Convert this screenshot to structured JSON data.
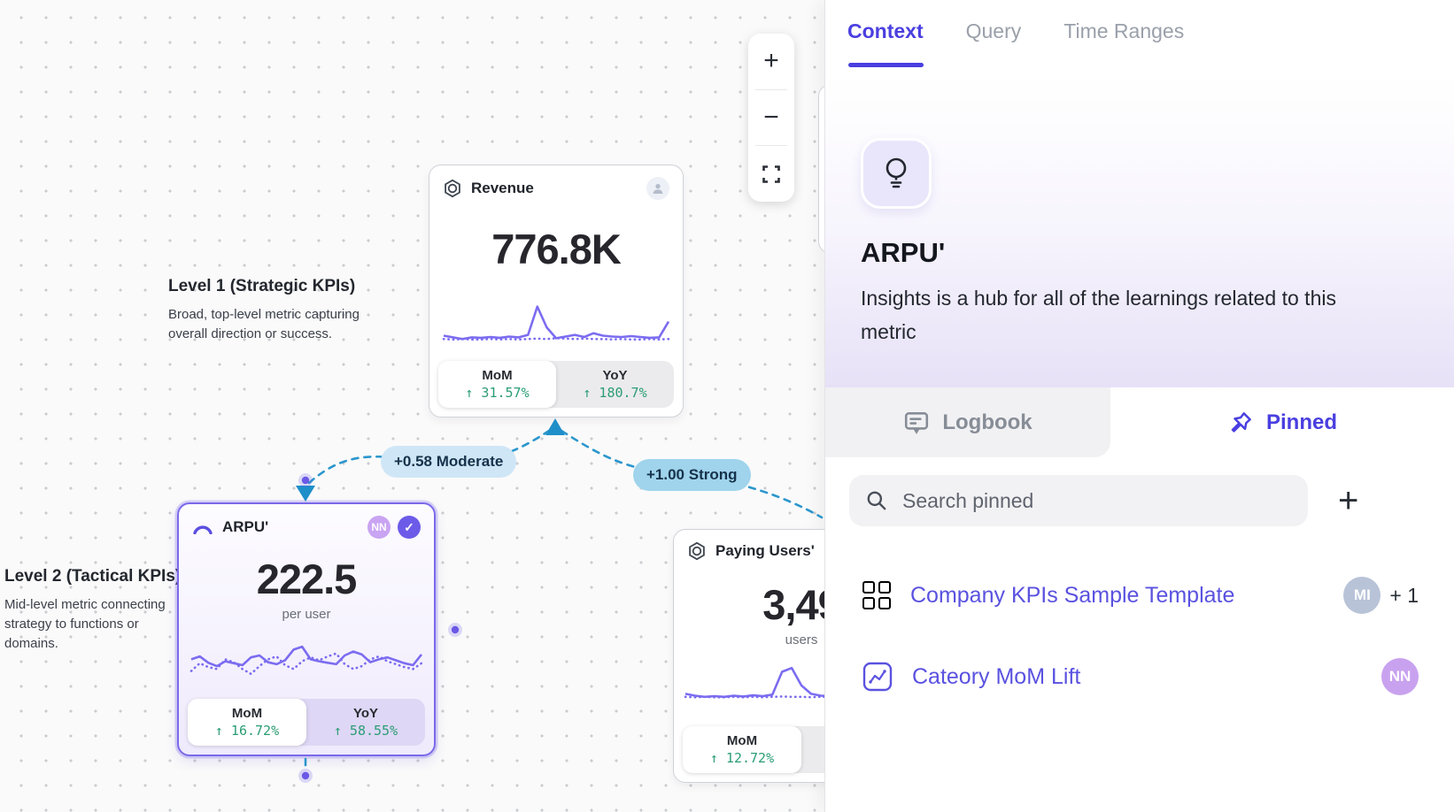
{
  "colors": {
    "accent": "#4a3fe0",
    "sparkline": "#7b6cf0",
    "positive_green": "#2a9d74",
    "edge_blue": "#2b96cd",
    "selected_card_border": "#7a69ea",
    "moderate_pill": "#cfe6f7",
    "strong_pill": "#9fd4ec"
  },
  "canvas": {
    "levels": [
      {
        "title": "Level 1 (Strategic KPIs)",
        "description": "Broad, top-level metric capturing overall direction or success."
      },
      {
        "title": "Level 2 (Tactical KPIs)",
        "description": "Mid-level metric connecting strategy to functions or domains."
      }
    ],
    "edges": [
      {
        "label": "+0.58 Moderate"
      },
      {
        "label": "+1.00 Strong"
      }
    ],
    "zoom_toolbar": {
      "zoom_in": "+",
      "zoom_out": "−"
    },
    "cards": [
      {
        "title": "Revenue",
        "value": "776.8K",
        "unit": "",
        "mom_label": "MoM",
        "mom_value": "↑ 31.57%",
        "yoy_label": "YoY",
        "yoy_value": "↑ 180.7%",
        "sparkline": {
          "solid": [
            18,
            14,
            10,
            14,
            13,
            15,
            13,
            16,
            14,
            20,
            88,
            38,
            12,
            16,
            20,
            15,
            24,
            18,
            16,
            15,
            17,
            15,
            13,
            14,
            52
          ],
          "dotted": [
            10,
            9,
            10,
            9,
            9,
            10,
            9,
            10,
            9,
            10,
            11,
            10,
            12,
            11,
            10,
            11,
            10,
            10,
            9,
            10,
            9,
            9,
            10,
            9,
            10
          ]
        }
      },
      {
        "title": "ARPU'",
        "value": "222.5",
        "unit": "per user",
        "avatar": "NN",
        "verified_check": "✓",
        "mom_label": "MoM",
        "mom_value": "↑ 16.72%",
        "yoy_label": "YoY",
        "yoy_value": "↑ 58.55%",
        "sparkline": {
          "solid": [
            52,
            58,
            45,
            38,
            48,
            44,
            40,
            56,
            60,
            46,
            42,
            50,
            72,
            78,
            52,
            48,
            45,
            42,
            60,
            68,
            62,
            46,
            52,
            56,
            50,
            44,
            40,
            62
          ],
          "dotted": [
            28,
            44,
            36,
            32,
            52,
            46,
            32,
            22,
            38,
            52,
            58,
            40,
            32,
            48,
            56,
            50,
            58,
            64,
            42,
            32,
            38,
            52,
            58,
            48,
            42,
            36,
            32,
            44
          ]
        }
      },
      {
        "title": "Paying Users'",
        "value": "3,49",
        "unit": "users",
        "mom_label": "MoM",
        "mom_value": "↑ 12.72%",
        "sparkline": {
          "solid": [
            20,
            15,
            12,
            14,
            12,
            15,
            13,
            16,
            14,
            18,
            78,
            88,
            42,
            20,
            15,
            14,
            13,
            12,
            13,
            11,
            12,
            13,
            12,
            12,
            13
          ],
          "dotted": [
            12,
            11,
            12,
            11,
            11,
            12,
            11,
            12,
            11,
            12,
            13,
            12,
            12,
            11,
            12,
            11,
            11,
            12,
            11,
            12,
            11,
            11,
            12,
            11,
            12
          ]
        }
      }
    ]
  },
  "panel": {
    "tabs": [
      {
        "label": "Context"
      },
      {
        "label": "Query"
      },
      {
        "label": "Time Ranges"
      }
    ],
    "active_tab": "Context",
    "hero": {
      "title": "ARPU'",
      "description": "Insights is a hub for all of the learnings related to this metric"
    },
    "subtabs": {
      "logbook": "Logbook",
      "pinned": "Pinned"
    },
    "search_placeholder": "Search pinned",
    "add_button": "+",
    "pinned_items": [
      {
        "label": "Company KPIs Sample Template",
        "avatar": "MI",
        "extra": "+ 1"
      },
      {
        "label": "Cateory MoM Lift",
        "avatar": "NN",
        "extra": ""
      }
    ]
  }
}
